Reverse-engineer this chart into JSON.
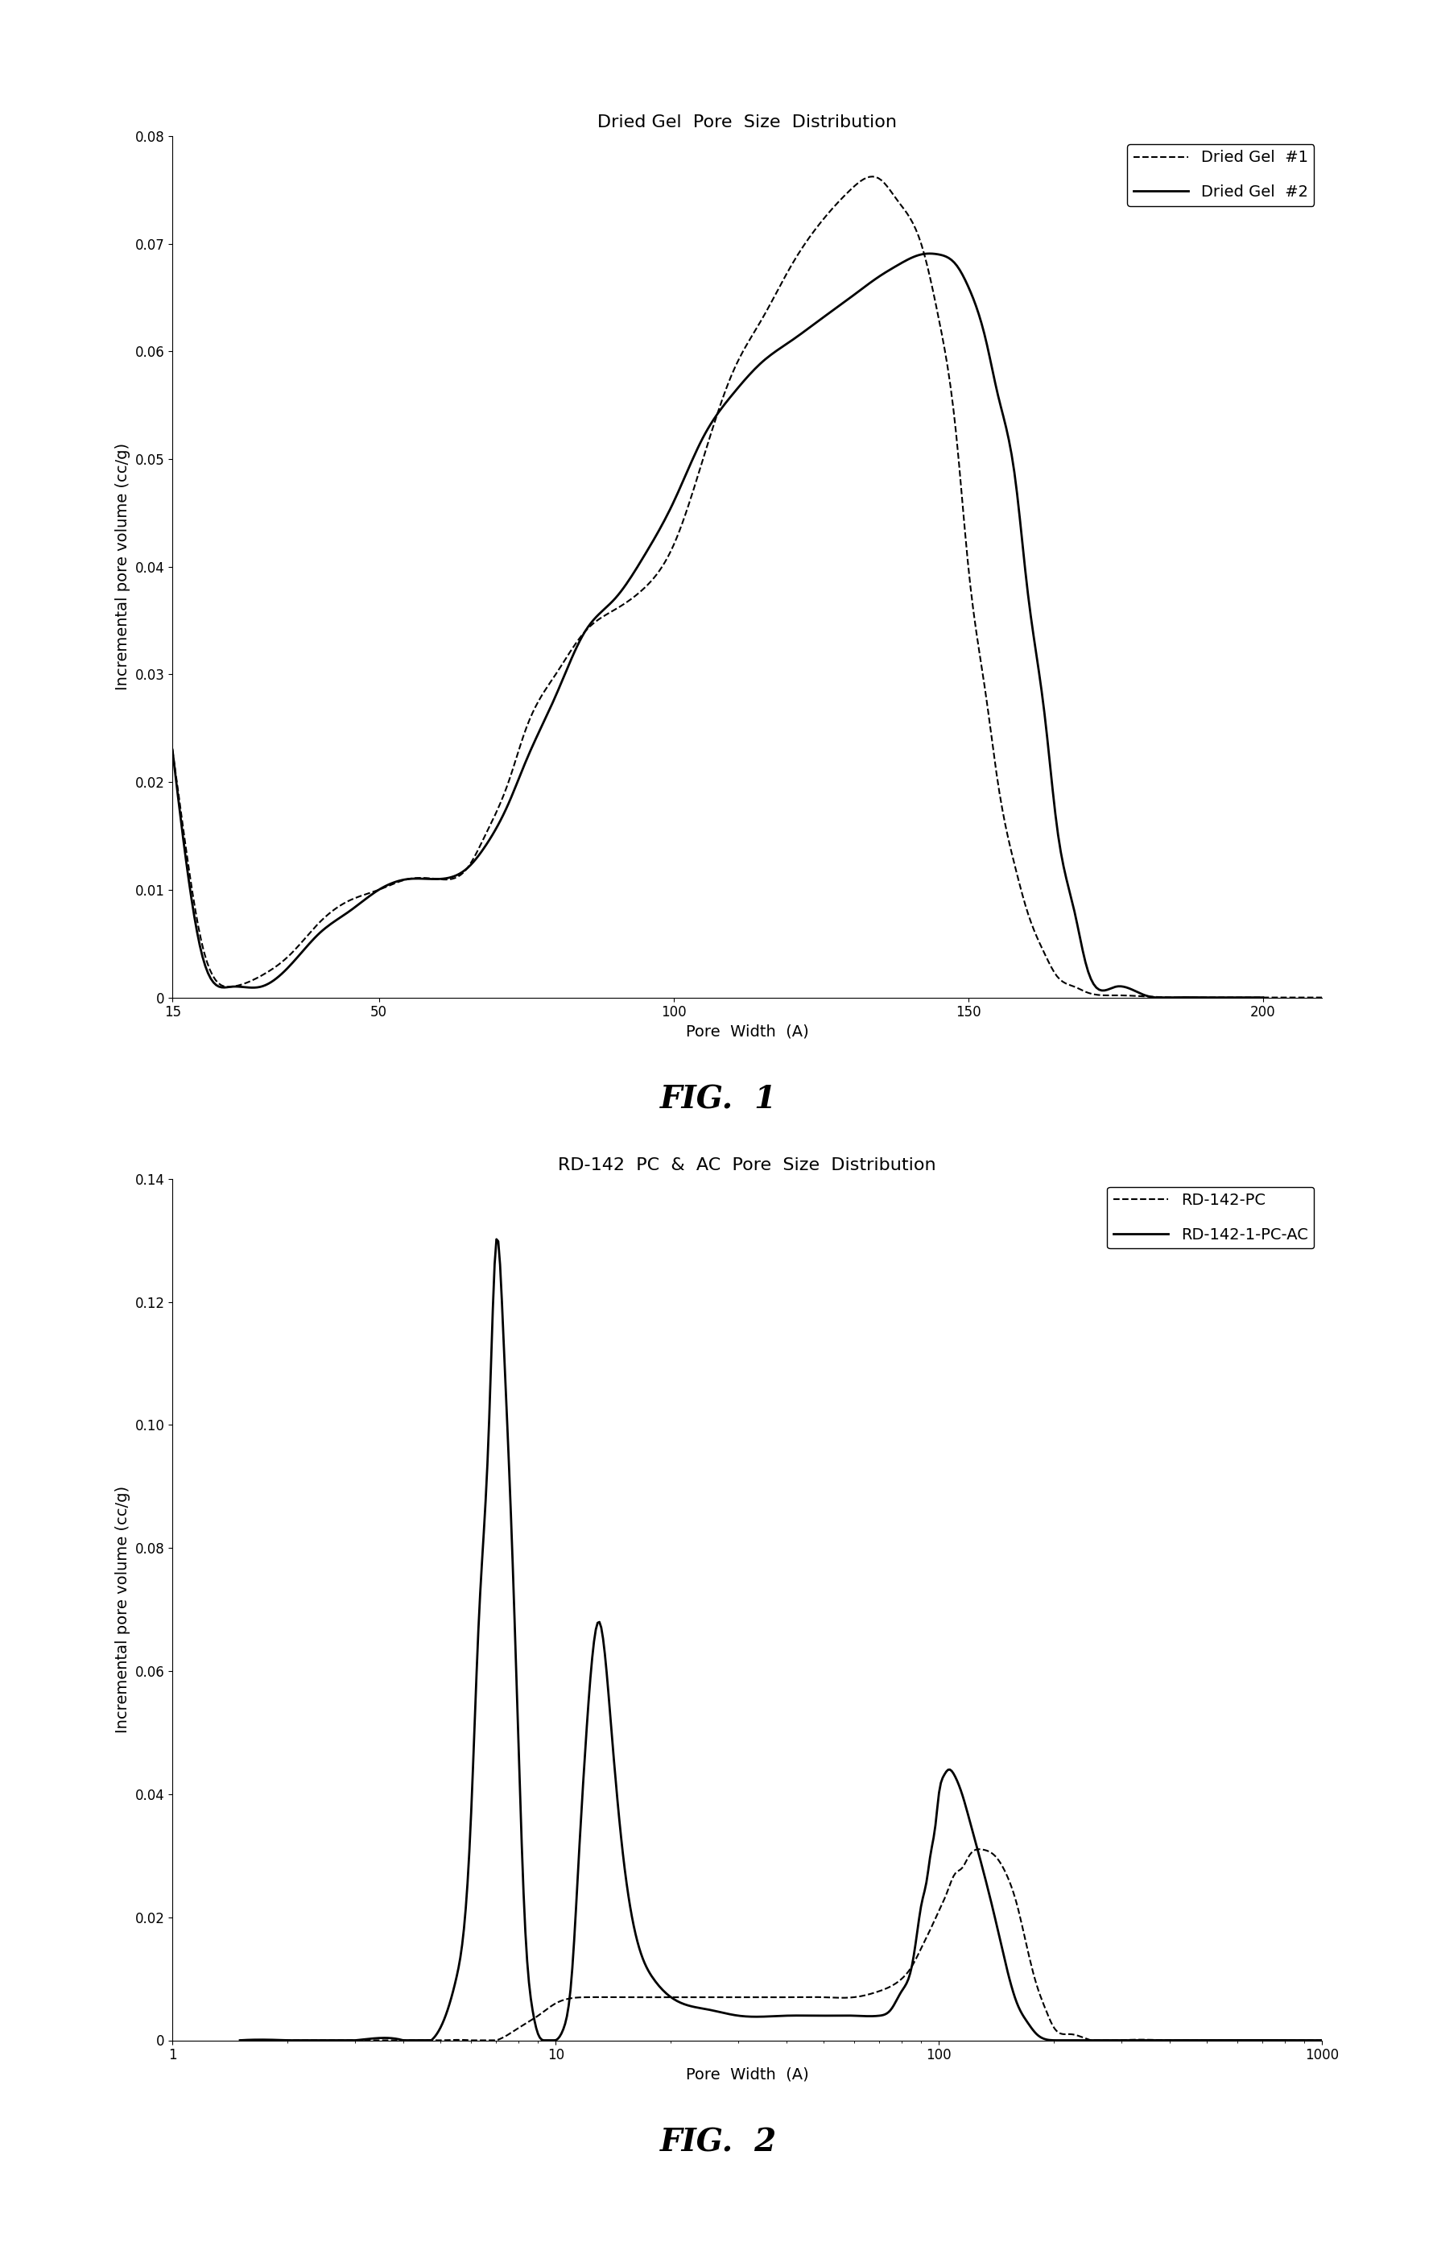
{
  "fig1": {
    "title": "Dried Gel  Pore  Size  Distribution",
    "xlabel": "Pore  Width  (A)",
    "ylabel": "Incremental pore volume (cc/g)",
    "ylim": [
      0,
      0.08
    ],
    "yticks": [
      0,
      0.01,
      0.02,
      0.03,
      0.04,
      0.05,
      0.06,
      0.07,
      0.08
    ],
    "xlim": [
      15,
      210
    ],
    "xticks": [
      15,
      50,
      100,
      150,
      200
    ],
    "legend1": "Dried Gel  #1",
    "legend2": "Dried Gel  #2",
    "gel1_x": [
      15,
      17,
      20,
      25,
      30,
      35,
      40,
      45,
      50,
      55,
      60,
      65,
      68,
      72,
      75,
      80,
      85,
      90,
      95,
      100,
      105,
      110,
      115,
      120,
      125,
      130,
      135,
      138,
      142,
      145,
      148,
      150,
      153,
      155,
      158,
      160,
      163,
      165,
      168,
      170,
      175,
      180,
      185,
      190,
      195,
      200,
      205,
      210
    ],
    "gel1_y": [
      0.023,
      0.015,
      0.005,
      0.001,
      0.002,
      0.004,
      0.007,
      0.009,
      0.01,
      0.011,
      0.011,
      0.012,
      0.015,
      0.02,
      0.025,
      0.03,
      0.034,
      0.036,
      0.038,
      0.042,
      0.05,
      0.058,
      0.063,
      0.068,
      0.072,
      0.075,
      0.076,
      0.074,
      0.07,
      0.063,
      0.052,
      0.04,
      0.028,
      0.02,
      0.012,
      0.008,
      0.004,
      0.002,
      0.001,
      0.0005,
      0.0002,
      0.0001,
      0.0,
      0.0,
      0.0,
      0.0,
      0.0,
      0.0
    ],
    "gel2_x": [
      15,
      17,
      20,
      25,
      30,
      35,
      40,
      45,
      50,
      55,
      60,
      65,
      68,
      72,
      75,
      80,
      85,
      90,
      95,
      100,
      105,
      110,
      115,
      120,
      125,
      130,
      135,
      138,
      142,
      145,
      148,
      150,
      153,
      155,
      158,
      160,
      163,
      165,
      168,
      170,
      175,
      180,
      185,
      190,
      195,
      200
    ],
    "gel2_y": [
      0.023,
      0.014,
      0.004,
      0.001,
      0.001,
      0.003,
      0.006,
      0.008,
      0.01,
      0.011,
      0.011,
      0.012,
      0.014,
      0.018,
      0.022,
      0.028,
      0.034,
      0.037,
      0.041,
      0.046,
      0.052,
      0.056,
      0.059,
      0.061,
      0.063,
      0.065,
      0.067,
      0.068,
      0.069,
      0.069,
      0.068,
      0.066,
      0.061,
      0.056,
      0.048,
      0.038,
      0.026,
      0.016,
      0.008,
      0.003,
      0.001,
      0.0002,
      0.0,
      0.0,
      0.0,
      0.0
    ]
  },
  "fig2": {
    "title": "RD-142  PC  &  AC  Pore  Size  Distribution",
    "xlabel": "Pore  Width  (A)",
    "ylabel": "Incremental pore volume (cc/g)",
    "ylim": [
      0,
      0.14
    ],
    "yticks": [
      0,
      0.02,
      0.04,
      0.06,
      0.08,
      0.1,
      0.12,
      0.14
    ],
    "xlim_log": [
      1,
      1000
    ],
    "xticks_log": [
      1,
      10,
      100,
      1000
    ],
    "legend1": "RD-142-PC",
    "legend2": "RD-142-1-PC-AC",
    "pc_x": [
      1.5,
      2,
      3,
      4,
      5,
      6,
      7,
      8,
      9,
      10,
      12,
      15,
      18,
      20,
      25,
      30,
      40,
      50,
      60,
      70,
      80,
      85,
      90,
      95,
      100,
      105,
      110,
      115,
      120,
      130,
      140,
      150,
      160,
      170,
      180,
      190,
      200,
      220,
      250,
      300,
      400,
      500,
      700,
      1000
    ],
    "pc_y": [
      0.0,
      0.0,
      0.0,
      0.0,
      0.0,
      0.0,
      0.0,
      0.002,
      0.004,
      0.006,
      0.007,
      0.007,
      0.007,
      0.007,
      0.007,
      0.007,
      0.007,
      0.007,
      0.007,
      0.008,
      0.01,
      0.012,
      0.015,
      0.018,
      0.021,
      0.024,
      0.027,
      0.028,
      0.03,
      0.031,
      0.03,
      0.027,
      0.022,
      0.015,
      0.009,
      0.005,
      0.002,
      0.001,
      0.0,
      0.0,
      0.0,
      0.0,
      0.0,
      0.0
    ],
    "ac_x": [
      1.5,
      2,
      3,
      4,
      5,
      5.5,
      6,
      6.3,
      6.7,
      7.0,
      7.3,
      7.7,
      8.0,
      8.3,
      8.7,
      9.0,
      9.5,
      10,
      10.5,
      11,
      11.5,
      12,
      13,
      14,
      15,
      18,
      20,
      25,
      30,
      40,
      50,
      60,
      70,
      75,
      80,
      85,
      88,
      90,
      93,
      95,
      98,
      100,
      103,
      106,
      110,
      115,
      120,
      130,
      140,
      150,
      160,
      170,
      180,
      200,
      250,
      300,
      500,
      1000
    ],
    "ac_y": [
      0.0,
      0.0,
      0.0,
      0.0,
      0.002,
      0.01,
      0.035,
      0.068,
      0.1,
      0.13,
      0.115,
      0.08,
      0.048,
      0.02,
      0.005,
      0.001,
      0.0,
      0.0,
      0.002,
      0.01,
      0.03,
      0.049,
      0.068,
      0.05,
      0.03,
      0.01,
      0.007,
      0.005,
      0.004,
      0.004,
      0.004,
      0.004,
      0.004,
      0.005,
      0.008,
      0.012,
      0.018,
      0.022,
      0.026,
      0.03,
      0.035,
      0.04,
      0.043,
      0.044,
      0.043,
      0.04,
      0.036,
      0.028,
      0.02,
      0.012,
      0.006,
      0.003,
      0.001,
      0.0,
      0.0,
      0.0,
      0.0,
      0.0
    ]
  },
  "background_color": "#ffffff",
  "line_color": "#000000",
  "fig_label_fontsize": 28,
  "title_fontsize": 16,
  "axis_label_fontsize": 14,
  "tick_fontsize": 12
}
